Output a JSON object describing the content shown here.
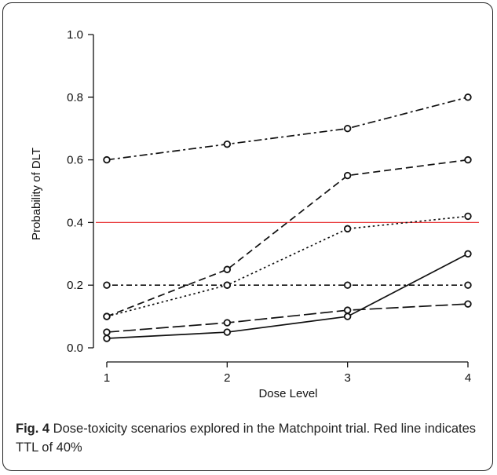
{
  "chart_data": {
    "type": "line",
    "xlabel": "Dose Level",
    "ylabel": "Probability of DLT",
    "x": [
      1,
      2,
      3,
      4
    ],
    "xticks": [
      "1",
      "2",
      "3",
      "4"
    ],
    "yticks": [
      "0.0",
      "0.2",
      "0.4",
      "0.6",
      "0.8",
      "1.0"
    ],
    "xlim": [
      1,
      4
    ],
    "ylim": [
      0,
      1
    ],
    "grid": false,
    "series": [
      {
        "values": [
          0.6,
          0.65,
          0.7,
          0.8
        ],
        "dash": "dashdot"
      },
      {
        "values": [
          0.1,
          0.25,
          0.55,
          0.6
        ],
        "dash": "dashed"
      },
      {
        "values": [
          0.1,
          0.2,
          0.38,
          0.42
        ],
        "dash": "dotted"
      },
      {
        "values": [
          0.2,
          0.2,
          0.2,
          0.2
        ],
        "dash": "dotdash"
      },
      {
        "values": [
          0.05,
          0.08,
          0.12,
          0.14
        ],
        "dash": "longdash"
      },
      {
        "values": [
          0.03,
          0.05,
          0.1,
          0.3
        ],
        "dash": "solid"
      }
    ],
    "reference_line": {
      "y": 0.4,
      "color": "#e8393a"
    },
    "line_color": "#111111"
  },
  "caption": {
    "label": "Fig. 4",
    "text": " Dose-toxicity scenarios explored in the Matchpoint trial. Red line indicates TTL of 40%"
  }
}
